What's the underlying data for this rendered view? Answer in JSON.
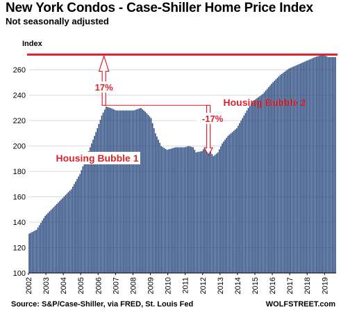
{
  "header": {
    "title": "New York Condos - Case-Shiller Home Price Index",
    "subtitle": "Not seasonally adjusted"
  },
  "footer": {
    "source": "Source: S&P/Case-Shiller, via FRED,  St. Louis Fed",
    "brand": "WOLFSTREET.com"
  },
  "colors": {
    "bar": "#2a4a7f",
    "annotation": "#d9232d",
    "grid": "#d9d9d9"
  },
  "chart_data": {
    "type": "bar",
    "title": "New York Condos - Case-Shiller Home Price Index",
    "subtitle": "Not seasonally adjusted",
    "ylabel": "Index",
    "ylim": [
      100,
      270
    ],
    "yticks": [
      100,
      120,
      140,
      160,
      180,
      200,
      220,
      240,
      260
    ],
    "x_start": "2002-01",
    "frequency": "monthly",
    "xlim": [
      "2002-01",
      "2019-08"
    ],
    "xticks": [
      "2002",
      "2003",
      "2004",
      "2005",
      "2006",
      "2007",
      "2008",
      "2009",
      "2010",
      "2011",
      "2012",
      "2013",
      "2014",
      "2015",
      "2016",
      "2017",
      "2018",
      "2019"
    ],
    "grid": "horizontal",
    "anchors": [
      [
        "2002-01",
        131
      ],
      [
        "2002-06",
        134
      ],
      [
        "2002-12",
        145
      ],
      [
        "2003-06",
        152
      ],
      [
        "2003-12",
        159
      ],
      [
        "2004-06",
        166
      ],
      [
        "2004-12",
        178
      ],
      [
        "2005-06",
        196
      ],
      [
        "2005-12",
        214
      ],
      [
        "2006-03",
        224
      ],
      [
        "2006-06",
        231
      ],
      [
        "2006-09",
        230
      ],
      [
        "2007-01",
        228
      ],
      [
        "2007-06",
        228
      ],
      [
        "2008-01",
        228
      ],
      [
        "2008-06",
        230
      ],
      [
        "2008-09",
        227
      ],
      [
        "2009-01",
        222
      ],
      [
        "2009-04",
        210
      ],
      [
        "2009-08",
        200
      ],
      [
        "2009-12",
        197
      ],
      [
        "2010-06",
        199
      ],
      [
        "2010-12",
        199
      ],
      [
        "2011-03",
        200
      ],
      [
        "2011-06",
        199
      ],
      [
        "2011-08",
        195
      ],
      [
        "2011-12",
        196
      ],
      [
        "2012-02",
        199
      ],
      [
        "2012-05",
        197
      ],
      [
        "2012-08",
        192
      ],
      [
        "2012-11",
        195
      ],
      [
        "2013-02",
        202
      ],
      [
        "2013-06",
        208
      ],
      [
        "2013-12",
        214
      ],
      [
        "2014-04",
        222
      ],
      [
        "2014-08",
        230
      ],
      [
        "2014-12",
        236
      ],
      [
        "2015-06",
        241
      ],
      [
        "2015-12",
        249
      ],
      [
        "2016-06",
        256
      ],
      [
        "2016-12",
        261
      ],
      [
        "2017-06",
        264
      ],
      [
        "2017-12",
        267
      ],
      [
        "2018-06",
        270
      ],
      [
        "2018-12",
        272
      ],
      [
        "2019-03",
        270
      ],
      [
        "2019-08",
        270
      ]
    ],
    "annotations": {
      "peak_line": 272,
      "bubble1_label": "Housing Bubble 1",
      "bubble2_label": "Housing Bubble 2",
      "up_pct": "17%",
      "down_pct": "-17%"
    }
  }
}
